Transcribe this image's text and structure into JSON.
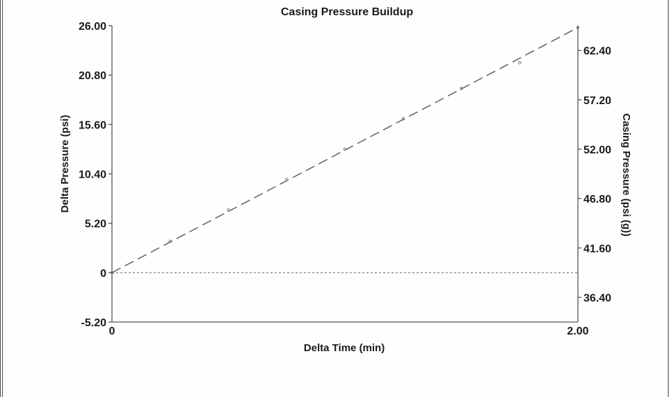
{
  "chart_data": {
    "type": "line",
    "title": "Casing Pressure Buildup",
    "xlabel": "Delta Time (min)",
    "ylabel": "Delta Pressure (psi)",
    "y2label": "Casing Pressure (psi (g))",
    "xlim": [
      0,
      2.0
    ],
    "ylim": [
      -5.2,
      26.0
    ],
    "y2lim": [
      33.8,
      65.0
    ],
    "x_ticks": [
      "0",
      "2.00"
    ],
    "y_ticks": [
      "-5.20",
      "0",
      "5.20",
      "10.40",
      "15.60",
      "20.80",
      "26.00"
    ],
    "y2_ticks": [
      "36.40",
      "41.60",
      "46.80",
      "52.00",
      "57.20",
      "62.40"
    ],
    "series": [
      {
        "style": "points",
        "x": [
          0,
          0.25,
          0.5,
          0.75,
          1.0,
          1.25,
          1.5,
          1.75,
          2.0
        ],
        "y": [
          0,
          3.3,
          6.6,
          9.8,
          13.0,
          16.2,
          19.4,
          22.1,
          25.8
        ]
      },
      {
        "style": "dashed-fit",
        "x": [
          0,
          2.0
        ],
        "y": [
          0,
          25.8
        ]
      }
    ],
    "reference_line": {
      "y": 0,
      "style": "dotted"
    },
    "colors": {
      "frame": "#4a4a4a",
      "line": "#555555",
      "points": "#777777"
    }
  }
}
